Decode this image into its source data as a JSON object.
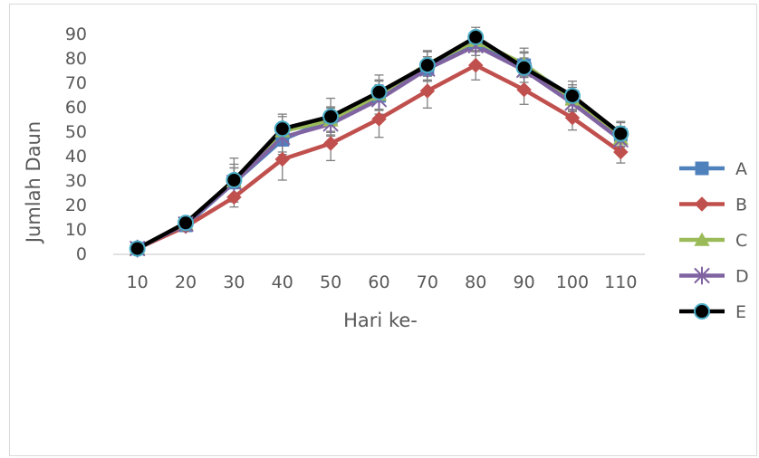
{
  "chart_data": {
    "type": "line",
    "xlabel": "Hari ke-",
    "ylabel": "Jumlah Daun",
    "ylim": [
      0,
      90
    ],
    "yticks": [
      0,
      10,
      20,
      30,
      40,
      50,
      60,
      70,
      80,
      90
    ],
    "categories": [
      "10",
      "20",
      "30",
      "40",
      "50",
      "60",
      "70",
      "80",
      "90",
      "100",
      "110"
    ],
    "legend_position": "right",
    "grid": false,
    "error_bars": true,
    "series": [
      {
        "name": "A",
        "color": "#4F81BD",
        "marker": "square",
        "values": [
          2,
          11.5,
          29,
          46.5,
          55,
          64.5,
          75.5,
          86.5,
          77,
          64,
          48.5
        ],
        "errors": [
          0.5,
          2.5,
          6,
          6,
          5,
          6,
          5,
          4,
          5,
          5,
          5
        ]
      },
      {
        "name": "B",
        "color": "#C0504D",
        "marker": "diamond",
        "values": [
          2,
          11,
          23,
          38.5,
          45,
          55,
          66.5,
          77,
          67,
          55.5,
          41.5
        ],
        "errors": [
          0.5,
          2,
          4,
          8.5,
          7,
          7.5,
          7,
          6,
          6,
          5,
          4.5
        ]
      },
      {
        "name": "C",
        "color": "#9BBB59",
        "marker": "triangle",
        "values": [
          2,
          12,
          29.5,
          50,
          54.5,
          65,
          77.5,
          87,
          77.5,
          63,
          47
        ],
        "errors": [
          0.5,
          2.5,
          7,
          6,
          5,
          6,
          5,
          4,
          5,
          5,
          5
        ]
      },
      {
        "name": "D",
        "color": "#8064A2",
        "marker": "star",
        "values": [
          2,
          12,
          29,
          47.5,
          53,
          63,
          75.5,
          85,
          75,
          61.5,
          46.5
        ],
        "errors": [
          0.5,
          2.5,
          6,
          6,
          5,
          6,
          5,
          4,
          5,
          5,
          5
        ]
      },
      {
        "name": "E",
        "color": "#000000",
        "marker": "circle",
        "values": [
          2,
          12.5,
          30,
          51,
          56,
          66,
          77,
          88.5,
          76,
          64.5,
          49
        ],
        "errors": [
          0.5,
          2.5,
          9,
          6,
          7.5,
          7,
          6,
          4,
          8,
          6,
          5
        ]
      }
    ]
  }
}
